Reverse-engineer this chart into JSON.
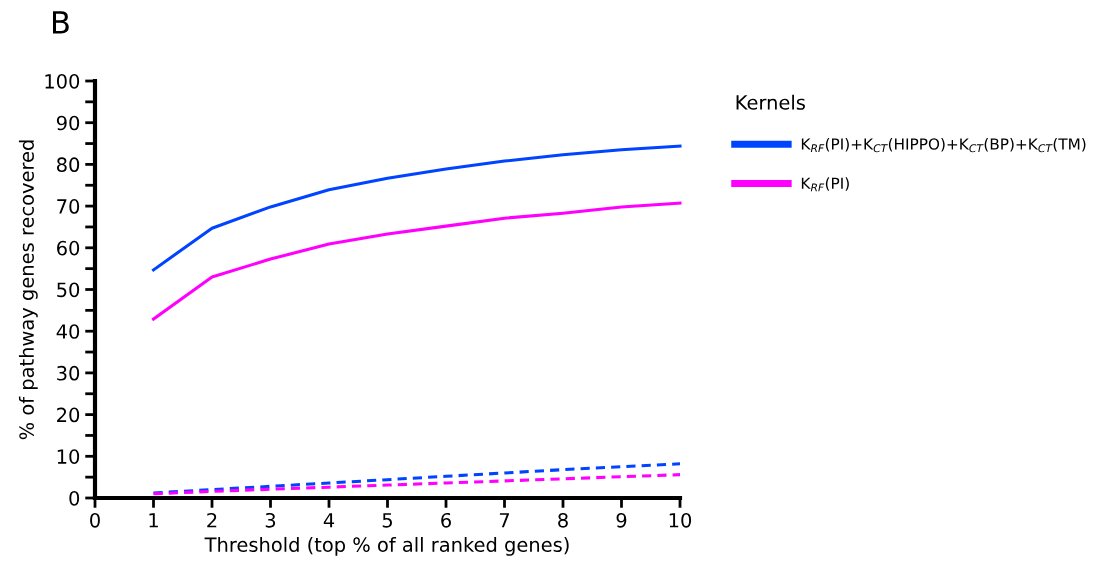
{
  "chart_data": {
    "type": "line",
    "annotations": [
      "B"
    ],
    "xlabel": "Threshold (top % of all ranked genes)",
    "ylabel": "% of pathway genes recovered",
    "legend_title": "Kernels",
    "x": [
      1,
      2,
      3,
      4,
      5,
      6,
      7,
      8,
      9,
      10
    ],
    "series": [
      {
        "name": "K$_{RF}$(PI)+K$_{CT}$(HIPPO)+K$_{CT}$(BP)+K$_{CT}$(TM)",
        "color": "#0044ff",
        "line_style": "solid",
        "values": [
          54.7,
          64.7,
          69.8,
          73.9,
          76.7,
          78.9,
          80.8,
          82.3,
          83.5,
          84.4
        ]
      },
      {
        "name": "K$_{RF}$(PI)",
        "color": "#ff00ff",
        "line_style": "solid",
        "values": [
          42.9,
          53.0,
          57.3,
          60.9,
          63.3,
          65.2,
          67.1,
          68.3,
          69.8,
          70.7
        ]
      },
      {
        "color": "#0044ff",
        "line_style": "dashed",
        "values": [
          1.2,
          2.0,
          2.8,
          3.6,
          4.4,
          5.2,
          6.0,
          6.8,
          7.5,
          8.2
        ]
      },
      {
        "color": "#ff00ff",
        "line_style": "dashed",
        "values": [
          1.0,
          1.6,
          2.1,
          2.6,
          3.1,
          3.6,
          4.1,
          4.6,
          5.1,
          5.6
        ]
      }
    ],
    "xlim": [
      0,
      10
    ],
    "xticks": [
      0,
      1,
      2,
      3,
      4,
      5,
      6,
      7,
      8,
      9,
      10
    ],
    "ylim": [
      0,
      100
    ],
    "yticks": [
      0,
      {
        "value": 5,
        "label": null
      },
      10,
      {
        "value": 15,
        "label": null
      },
      20,
      {
        "value": 25,
        "label": null
      },
      30,
      {
        "value": 35,
        "label": null
      },
      40,
      {
        "value": 45,
        "label": null
      },
      50,
      {
        "value": 55,
        "label": null
      },
      60,
      {
        "value": 65,
        "label": null
      },
      70,
      {
        "value": 75,
        "label": null
      },
      80,
      {
        "value": 85,
        "label": null
      },
      90,
      {
        "value": 95,
        "label": null
      },
      100
    ],
    "grid": false,
    "legend": "top right",
    "marker": "none"
  }
}
